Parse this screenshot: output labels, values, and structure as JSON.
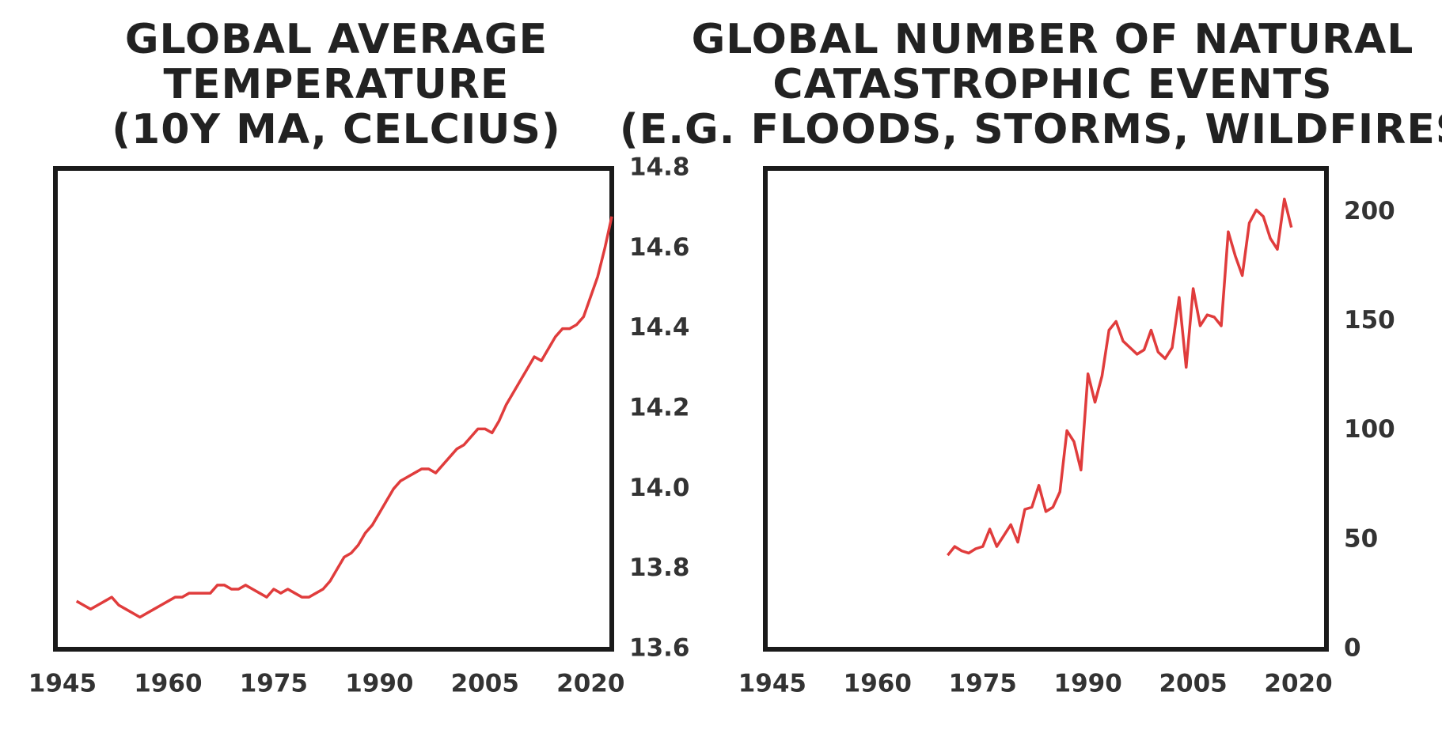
{
  "chart_data": [
    {
      "type": "line",
      "title": [
        "GLOBAL AVERAGE",
        "TEMPERATURE",
        "(10Y MA, CELCIUS)"
      ],
      "x": [
        1947,
        1948,
        1949,
        1950,
        1951,
        1952,
        1953,
        1954,
        1955,
        1956,
        1957,
        1958,
        1959,
        1960,
        1961,
        1962,
        1963,
        1964,
        1965,
        1966,
        1967,
        1968,
        1969,
        1970,
        1971,
        1972,
        1973,
        1974,
        1975,
        1976,
        1977,
        1978,
        1979,
        1980,
        1981,
        1982,
        1983,
        1984,
        1985,
        1986,
        1987,
        1988,
        1989,
        1990,
        1991,
        1992,
        1993,
        1994,
        1995,
        1996,
        1997,
        1998,
        1999,
        2000,
        2001,
        2002,
        2003,
        2004,
        2005,
        2006,
        2007,
        2008,
        2009,
        2010,
        2011,
        2012,
        2013,
        2014,
        2015,
        2016,
        2017,
        2018,
        2019,
        2020,
        2021,
        2022,
        2023
      ],
      "series": [
        {
          "name": "Temperature",
          "color": "#e03c3c",
          "values": [
            13.72,
            13.71,
            13.7,
            13.71,
            13.72,
            13.73,
            13.71,
            13.7,
            13.69,
            13.68,
            13.69,
            13.7,
            13.71,
            13.72,
            13.73,
            13.73,
            13.74,
            13.74,
            13.74,
            13.74,
            13.76,
            13.76,
            13.75,
            13.75,
            13.76,
            13.75,
            13.74,
            13.73,
            13.75,
            13.74,
            13.75,
            13.74,
            13.73,
            13.73,
            13.74,
            13.75,
            13.77,
            13.8,
            13.83,
            13.84,
            13.86,
            13.89,
            13.91,
            13.94,
            13.97,
            14.0,
            14.02,
            14.03,
            14.04,
            14.05,
            14.05,
            14.04,
            14.06,
            14.08,
            14.1,
            14.11,
            14.13,
            14.15,
            14.15,
            14.14,
            14.17,
            14.21,
            14.24,
            14.27,
            14.3,
            14.33,
            14.32,
            14.35,
            14.38,
            14.4,
            14.4,
            14.41,
            14.43,
            14.48,
            14.53,
            14.6,
            14.68
          ]
        }
      ],
      "xlim": [
        1944,
        2023
      ],
      "xticks": [
        1945,
        1960,
        1975,
        1990,
        2005,
        2020
      ],
      "ylim": [
        13.6,
        14.8
      ],
      "yticks": [
        {
          "value": 13.6,
          "label": "13.6"
        },
        {
          "value": 13.8,
          "label": "13.8"
        },
        {
          "value": 14.0,
          "label": "14.0"
        },
        {
          "value": 14.2,
          "label": "14.2"
        },
        {
          "value": 14.4,
          "label": "14.4"
        },
        {
          "value": 14.6,
          "label": "14.6"
        },
        {
          "value": 14.8,
          "label": "14.8"
        }
      ],
      "y_axis_side": "right",
      "grid": false
    },
    {
      "type": "line",
      "title": [
        "GLOBAL NUMBER OF NATURAL",
        "CATASTROPHIC EVENTS",
        "(E.G. FLOODS, STORMS, WILDFIRES)"
      ],
      "x": [
        1970,
        1971,
        1972,
        1973,
        1974,
        1975,
        1976,
        1977,
        1978,
        1979,
        1980,
        1981,
        1982,
        1983,
        1984,
        1985,
        1986,
        1987,
        1988,
        1989,
        1990,
        1991,
        1992,
        1993,
        1994,
        1995,
        1996,
        1997,
        1998,
        1999,
        2000,
        2001,
        2002,
        2003,
        2004,
        2005,
        2006,
        2007,
        2008,
        2009,
        2010,
        2011,
        2012,
        2013,
        2014,
        2015,
        2016,
        2017,
        2018,
        2019
      ],
      "series": [
        {
          "name": "Events",
          "color": "#e03c3c",
          "values": [
            43,
            47,
            45,
            44,
            46,
            47,
            55,
            47,
            52,
            57,
            49,
            64,
            65,
            75,
            63,
            65,
            72,
            100,
            95,
            82,
            126,
            113,
            125,
            146,
            150,
            141,
            138,
            135,
            137,
            146,
            136,
            133,
            138,
            161,
            129,
            165,
            148,
            153,
            152,
            148,
            191,
            180,
            171,
            195,
            201,
            198,
            188,
            183,
            206,
            193
          ]
        }
      ],
      "xlim": [
        1944,
        2024
      ],
      "xticks": [
        1945,
        1960,
        1975,
        1990,
        2005,
        2020
      ],
      "ylim": [
        0,
        220
      ],
      "yticks": [
        0,
        50,
        100,
        150,
        200
      ],
      "y_axis_side": "right",
      "grid": false
    }
  ]
}
